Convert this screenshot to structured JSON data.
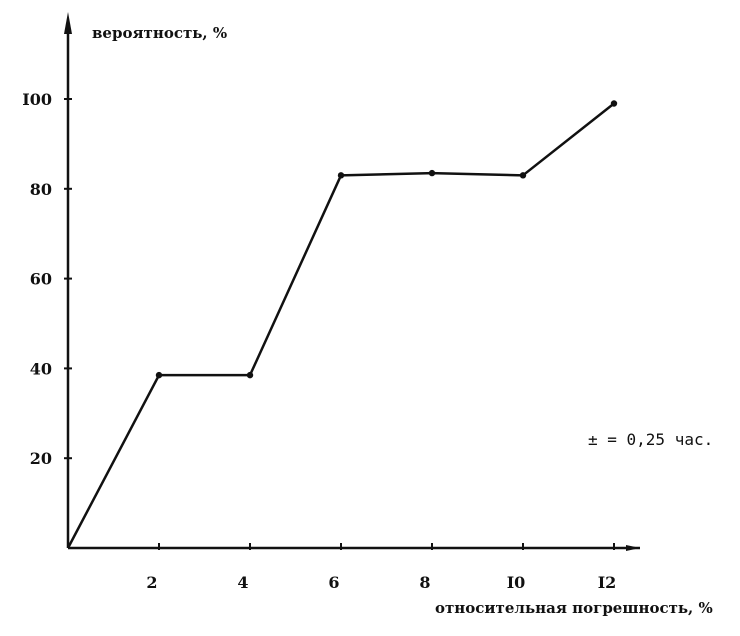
{
  "chart_data": {
    "type": "line",
    "ylabel": "вероятность, %",
    "xlabel": "относительная погрешность, %",
    "annotation": "± = 0,25 час.",
    "x_ticks": [
      "2",
      "4",
      "6",
      "8",
      "I0",
      "I2"
    ],
    "y_ticks": [
      "20",
      "40",
      "60",
      "80",
      "I00"
    ],
    "xlim": [
      0,
      13
    ],
    "ylim": [
      0,
      118
    ],
    "grid": false,
    "series": [
      {
        "x": [
          0,
          2,
          4,
          6,
          8,
          10,
          12
        ],
        "y": [
          0,
          38.5,
          38.5,
          83,
          83.5,
          83,
          99
        ]
      }
    ],
    "colors": {
      "line": "#111111"
    }
  }
}
